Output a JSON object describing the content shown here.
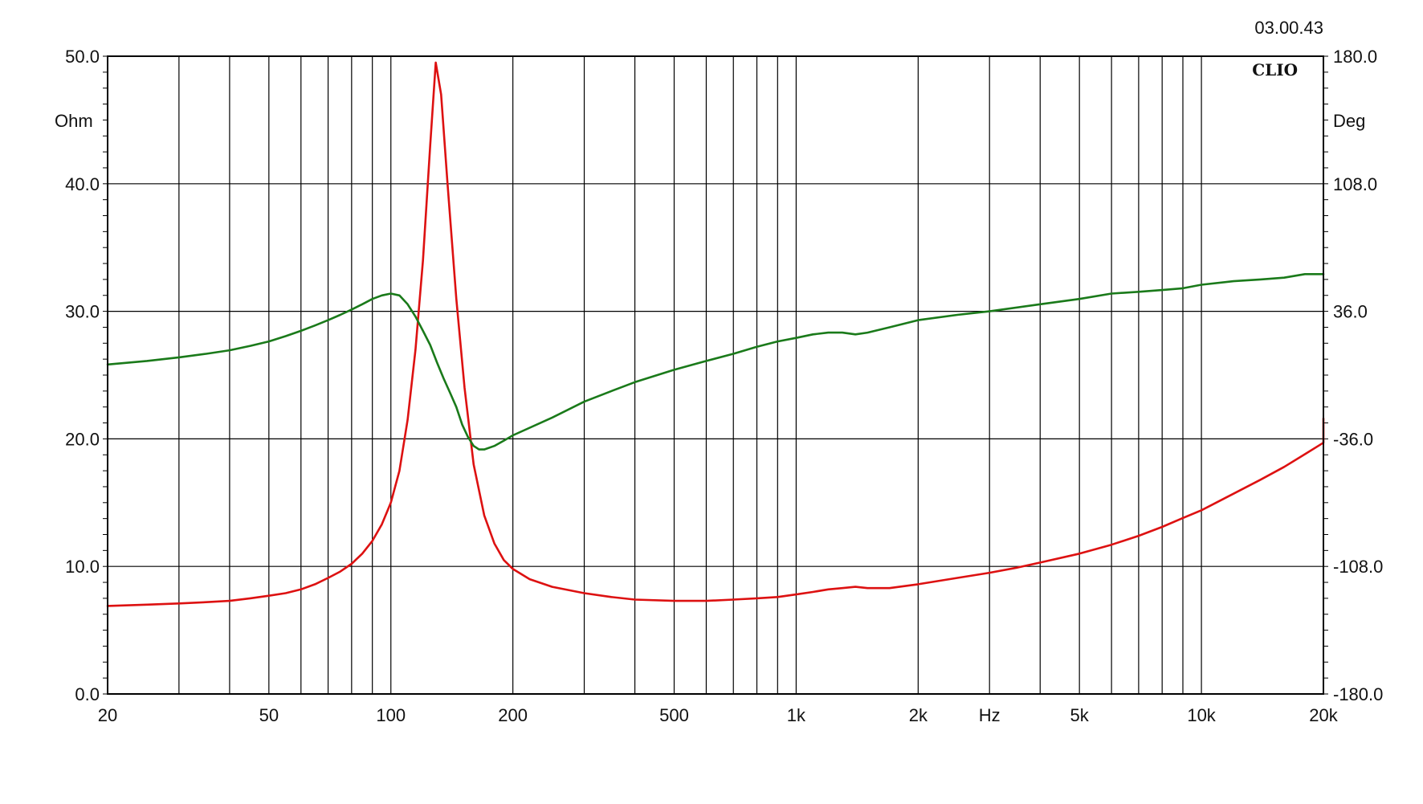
{
  "chart_data": {
    "type": "line",
    "timestamp": "03.00.43",
    "brand": "CLIO",
    "x_axis": {
      "scale": "log",
      "range": [
        20,
        20000
      ],
      "unit_label": "Hz",
      "tick_labels": [
        {
          "value": 20,
          "label": "20"
        },
        {
          "value": 50,
          "label": "50"
        },
        {
          "value": 100,
          "label": "100"
        },
        {
          "value": 200,
          "label": "200"
        },
        {
          "value": 500,
          "label": "500"
        },
        {
          "value": 1000,
          "label": "1k"
        },
        {
          "value": 2000,
          "label": "2k"
        },
        {
          "value": 5000,
          "label": "5k"
        },
        {
          "value": 10000,
          "label": "10k"
        },
        {
          "value": 20000,
          "label": "20k"
        }
      ],
      "unit_label_position_value": 3000,
      "gridlines": [
        20,
        30,
        40,
        50,
        60,
        70,
        80,
        90,
        100,
        200,
        300,
        400,
        500,
        600,
        700,
        800,
        900,
        1000,
        2000,
        3000,
        4000,
        5000,
        6000,
        7000,
        8000,
        9000,
        10000,
        20000
      ]
    },
    "y_left": {
      "unit": "Ohm",
      "range": [
        0,
        50
      ],
      "ticks": [
        {
          "value": 0,
          "label": "0.0"
        },
        {
          "value": 10,
          "label": "10.0"
        },
        {
          "value": 20,
          "label": "20.0"
        },
        {
          "value": 30,
          "label": "30.0"
        },
        {
          "value": 40,
          "label": "40.0"
        },
        {
          "value": 50,
          "label": "50.0"
        }
      ]
    },
    "y_right": {
      "unit": "Deg",
      "range": [
        -180,
        180
      ],
      "ticks": [
        {
          "value": -180,
          "label": "-180.0"
        },
        {
          "value": -108,
          "label": "-108.0"
        },
        {
          "value": -36,
          "label": "-36.0"
        },
        {
          "value": 36,
          "label": "36.0"
        },
        {
          "value": 108,
          "label": "108.0"
        },
        {
          "value": 180,
          "label": "180.0"
        }
      ]
    },
    "grid": true,
    "series": [
      {
        "id": "impedance",
        "axis": "left",
        "color": "#dd1111",
        "points": [
          [
            20,
            6.9
          ],
          [
            25,
            7.0
          ],
          [
            30,
            7.1
          ],
          [
            35,
            7.2
          ],
          [
            40,
            7.3
          ],
          [
            45,
            7.5
          ],
          [
            50,
            7.7
          ],
          [
            55,
            7.9
          ],
          [
            60,
            8.2
          ],
          [
            65,
            8.6
          ],
          [
            70,
            9.1
          ],
          [
            75,
            9.6
          ],
          [
            80,
            10.2
          ],
          [
            85,
            11.0
          ],
          [
            90,
            12.0
          ],
          [
            95,
            13.3
          ],
          [
            100,
            15.0
          ],
          [
            105,
            17.5
          ],
          [
            110,
            21.5
          ],
          [
            115,
            27.0
          ],
          [
            120,
            34.0
          ],
          [
            125,
            43.0
          ],
          [
            129,
            49.5
          ],
          [
            133,
            47.0
          ],
          [
            138,
            40.0
          ],
          [
            145,
            31.0
          ],
          [
            152,
            24.0
          ],
          [
            160,
            18.0
          ],
          [
            170,
            14.0
          ],
          [
            180,
            11.8
          ],
          [
            190,
            10.5
          ],
          [
            200,
            9.8
          ],
          [
            220,
            9.0
          ],
          [
            250,
            8.4
          ],
          [
            300,
            7.9
          ],
          [
            350,
            7.6
          ],
          [
            400,
            7.4
          ],
          [
            500,
            7.3
          ],
          [
            600,
            7.3
          ],
          [
            700,
            7.4
          ],
          [
            800,
            7.5
          ],
          [
            900,
            7.6
          ],
          [
            1000,
            7.8
          ],
          [
            1100,
            8.0
          ],
          [
            1200,
            8.2
          ],
          [
            1300,
            8.3
          ],
          [
            1400,
            8.4
          ],
          [
            1500,
            8.3
          ],
          [
            1700,
            8.3
          ],
          [
            2000,
            8.6
          ],
          [
            2500,
            9.1
          ],
          [
            3000,
            9.5
          ],
          [
            3500,
            9.9
          ],
          [
            4000,
            10.3
          ],
          [
            5000,
            11.0
          ],
          [
            6000,
            11.7
          ],
          [
            7000,
            12.4
          ],
          [
            8000,
            13.1
          ],
          [
            9000,
            13.8
          ],
          [
            10000,
            14.4
          ],
          [
            12000,
            15.7
          ],
          [
            14000,
            16.8
          ],
          [
            16000,
            17.8
          ],
          [
            18000,
            18.8
          ],
          [
            20000,
            19.7
          ],
          [
            21000,
            21.6
          ]
        ]
      },
      {
        "id": "phase",
        "axis": "right",
        "color": "#1a7a1a",
        "points": [
          [
            20,
            6
          ],
          [
            25,
            8
          ],
          [
            30,
            10
          ],
          [
            35,
            12
          ],
          [
            40,
            14
          ],
          [
            45,
            16.5
          ],
          [
            50,
            19
          ],
          [
            55,
            22
          ],
          [
            60,
            25
          ],
          [
            65,
            28
          ],
          [
            70,
            31
          ],
          [
            75,
            34
          ],
          [
            80,
            37
          ],
          [
            85,
            40
          ],
          [
            90,
            43
          ],
          [
            95,
            45
          ],
          [
            100,
            46
          ],
          [
            105,
            45
          ],
          [
            110,
            40
          ],
          [
            115,
            33
          ],
          [
            120,
            25
          ],
          [
            125,
            17
          ],
          [
            130,
            7
          ],
          [
            135,
            -2
          ],
          [
            140,
            -10
          ],
          [
            145,
            -18
          ],
          [
            150,
            -28
          ],
          [
            155,
            -35
          ],
          [
            160,
            -40
          ],
          [
            165,
            -42
          ],
          [
            170,
            -42
          ],
          [
            180,
            -40
          ],
          [
            190,
            -37
          ],
          [
            200,
            -34
          ],
          [
            250,
            -24
          ],
          [
            300,
            -15
          ],
          [
            350,
            -9
          ],
          [
            400,
            -4
          ],
          [
            500,
            3
          ],
          [
            600,
            8
          ],
          [
            700,
            12
          ],
          [
            800,
            16
          ],
          [
            900,
            19
          ],
          [
            1000,
            21
          ],
          [
            1100,
            23
          ],
          [
            1200,
            24
          ],
          [
            1300,
            24
          ],
          [
            1400,
            23
          ],
          [
            1500,
            24
          ],
          [
            1700,
            27
          ],
          [
            2000,
            31
          ],
          [
            2500,
            34
          ],
          [
            3000,
            36
          ],
          [
            4000,
            40
          ],
          [
            5000,
            43
          ],
          [
            6000,
            46
          ],
          [
            7000,
            47
          ],
          [
            8000,
            48
          ],
          [
            9000,
            49
          ],
          [
            10000,
            51
          ],
          [
            12000,
            53
          ],
          [
            14000,
            54
          ],
          [
            16000,
            55
          ],
          [
            18000,
            57
          ],
          [
            20000,
            57
          ],
          [
            21000,
            57
          ]
        ]
      }
    ]
  }
}
